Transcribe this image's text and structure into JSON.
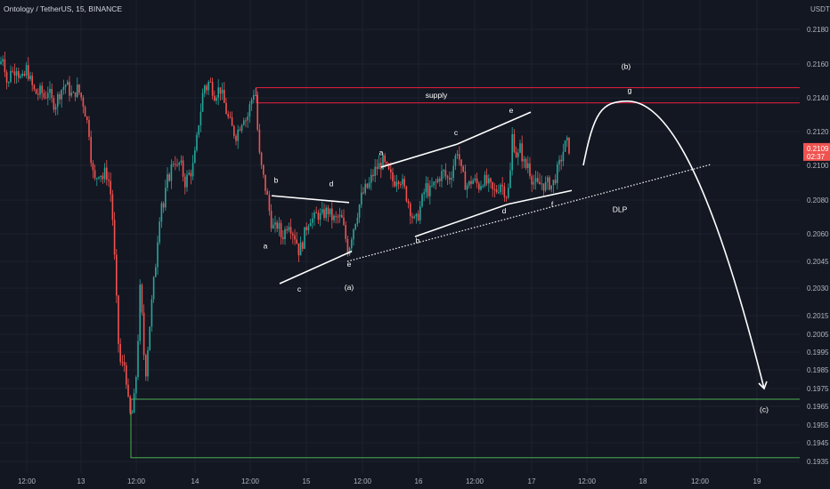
{
  "header": {
    "title": "Ontology / TetherUS, 15, BINANCE",
    "currency": "USDT"
  },
  "chart_data": {
    "type": "candlestick",
    "ylim": [
      0.193,
      0.219
    ],
    "price_ticks": [
      "0.2180",
      "0.2160",
      "0.2140",
      "0.2120",
      "0.2100",
      "0.2080",
      "0.2060",
      "0.2045",
      "0.2030",
      "0.2015",
      "0.2005",
      "0.1995",
      "0.1985",
      "0.1975",
      "0.1965",
      "0.1955",
      "0.1945",
      "0.1935"
    ],
    "time_ticks": [
      "12:00",
      "13",
      "12:00",
      "14",
      "12:00",
      "15",
      "12:00",
      "16",
      "12:00",
      "17",
      "12:00",
      "18",
      "12:00",
      "19"
    ],
    "last_price": "0.2109",
    "countdown": "02:37",
    "close_path": [
      [
        0,
        0.216
      ],
      [
        4,
        0.2166
      ],
      [
        7,
        0.215
      ],
      [
        10,
        0.2148
      ],
      [
        12,
        0.2158
      ],
      [
        15,
        0.2154
      ],
      [
        18,
        0.216
      ],
      [
        22,
        0.2152
      ],
      [
        26,
        0.215
      ],
      [
        30,
        0.2158
      ],
      [
        34,
        0.215
      ],
      [
        38,
        0.2144
      ],
      [
        42,
        0.2142
      ],
      [
        46,
        0.2144
      ],
      [
        50,
        0.214
      ],
      [
        54,
        0.2145
      ],
      [
        58,
        0.2138
      ],
      [
        62,
        0.2136
      ],
      [
        66,
        0.2142
      ],
      [
        70,
        0.2146
      ],
      [
        74,
        0.2148
      ],
      [
        78,
        0.2144
      ],
      [
        82,
        0.214
      ],
      [
        86,
        0.2146
      ],
      [
        90,
        0.2142
      ],
      [
        94,
        0.2136
      ],
      [
        97,
        0.2128
      ],
      [
        100,
        0.212
      ],
      [
        103,
        0.21
      ],
      [
        106,
        0.209
      ],
      [
        109,
        0.2094
      ],
      [
        112,
        0.2098
      ],
      [
        115,
        0.2092
      ],
      [
        118,
        0.2096
      ],
      [
        121,
        0.2094
      ],
      [
        124,
        0.2085
      ],
      [
        127,
        0.2065
      ],
      [
        130,
        0.203
      ],
      [
        133,
        0.2
      ],
      [
        136,
        0.1985
      ],
      [
        139,
        0.199
      ],
      [
        142,
        0.198
      ],
      [
        145,
        0.196
      ],
      [
        148,
        0.196
      ],
      [
        151,
        0.197
      ],
      [
        154,
        0.199
      ],
      [
        157,
        0.203
      ],
      [
        160,
        0.201
      ],
      [
        163,
        0.198
      ],
      [
        166,
        0.1998
      ],
      [
        169,
        0.2015
      ],
      [
        172,
        0.203
      ],
      [
        175,
        0.2045
      ],
      [
        178,
        0.2065
      ],
      [
        181,
        0.208
      ],
      [
        184,
        0.2075
      ],
      [
        187,
        0.209
      ],
      [
        190,
        0.2094
      ],
      [
        193,
        0.21
      ],
      [
        196,
        0.2105
      ],
      [
        199,
        0.2098
      ],
      [
        202,
        0.2102
      ],
      [
        205,
        0.2096
      ],
      [
        208,
        0.209
      ],
      [
        211,
        0.2094
      ],
      [
        214,
        0.2096
      ],
      [
        217,
        0.21
      ],
      [
        220,
        0.211
      ],
      [
        223,
        0.2125
      ],
      [
        226,
        0.2135
      ],
      [
        229,
        0.2148
      ],
      [
        232,
        0.2146
      ],
      [
        235,
        0.215
      ],
      [
        238,
        0.2146
      ],
      [
        241,
        0.2142
      ],
      [
        244,
        0.2144
      ],
      [
        247,
        0.2146
      ],
      [
        250,
        0.214
      ],
      [
        253,
        0.2134
      ],
      [
        256,
        0.2128
      ],
      [
        259,
        0.2124
      ],
      [
        262,
        0.212
      ],
      [
        265,
        0.2118
      ],
      [
        268,
        0.2122
      ],
      [
        271,
        0.2126
      ],
      [
        274,
        0.213
      ],
      [
        277,
        0.2126
      ],
      [
        280,
        0.2134
      ],
      [
        283,
        0.214
      ],
      [
        286,
        0.2146
      ],
      [
        288,
        0.2138
      ],
      [
        290,
        0.211
      ],
      [
        293,
        0.21
      ],
      [
        296,
        0.2092
      ],
      [
        300,
        0.2082
      ],
      [
        304,
        0.2068
      ],
      [
        308,
        0.2062
      ],
      [
        312,
        0.2066
      ],
      [
        316,
        0.2058
      ],
      [
        320,
        0.2062
      ],
      [
        324,
        0.2068
      ],
      [
        328,
        0.2062
      ],
      [
        332,
        0.2058
      ],
      [
        336,
        0.205
      ],
      [
        340,
        0.2056
      ],
      [
        344,
        0.2064
      ],
      [
        348,
        0.207
      ],
      [
        352,
        0.2068
      ],
      [
        356,
        0.2072
      ],
      [
        360,
        0.207
      ],
      [
        364,
        0.2072
      ],
      [
        368,
        0.2074
      ],
      [
        372,
        0.207
      ],
      [
        376,
        0.2068
      ],
      [
        380,
        0.207
      ],
      [
        384,
        0.2068
      ],
      [
        388,
        0.2058
      ],
      [
        391,
        0.205
      ],
      [
        394,
        0.2058
      ],
      [
        398,
        0.2066
      ],
      [
        402,
        0.2074
      ],
      [
        406,
        0.2082
      ],
      [
        410,
        0.2086
      ],
      [
        414,
        0.2088
      ],
      [
        418,
        0.2094
      ],
      [
        422,
        0.2098
      ],
      [
        426,
        0.21
      ],
      [
        430,
        0.2102
      ],
      [
        434,
        0.2098
      ],
      [
        438,
        0.2094
      ],
      [
        442,
        0.209
      ],
      [
        446,
        0.2094
      ],
      [
        450,
        0.2092
      ],
      [
        454,
        0.2086
      ],
      [
        458,
        0.208
      ],
      [
        462,
        0.2072
      ],
      [
        466,
        0.2066
      ],
      [
        470,
        0.2072
      ],
      [
        474,
        0.208
      ],
      [
        478,
        0.2088
      ],
      [
        482,
        0.2084
      ],
      [
        486,
        0.2088
      ],
      [
        490,
        0.209
      ],
      [
        494,
        0.2094
      ],
      [
        498,
        0.2096
      ],
      [
        502,
        0.2092
      ],
      [
        506,
        0.2094
      ],
      [
        510,
        0.2102
      ],
      [
        514,
        0.211
      ],
      [
        518,
        0.2096
      ],
      [
        522,
        0.209
      ],
      [
        526,
        0.2088
      ],
      [
        530,
        0.2092
      ],
      [
        534,
        0.209
      ],
      [
        538,
        0.2088
      ],
      [
        542,
        0.2092
      ],
      [
        546,
        0.209
      ],
      [
        550,
        0.2088
      ],
      [
        554,
        0.2084
      ],
      [
        558,
        0.2086
      ],
      [
        562,
        0.209
      ],
      [
        566,
        0.2086
      ],
      [
        570,
        0.2082
      ],
      [
        573,
        0.2096
      ],
      [
        575,
        0.2118
      ],
      [
        578,
        0.211
      ],
      [
        581,
        0.2104
      ],
      [
        584,
        0.211
      ],
      [
        587,
        0.2104
      ],
      [
        590,
        0.2098
      ],
      [
        593,
        0.2102
      ],
      [
        596,
        0.2094
      ],
      [
        600,
        0.209
      ],
      [
        604,
        0.2088
      ],
      [
        608,
        0.209
      ],
      [
        612,
        0.2088
      ],
      [
        616,
        0.209
      ],
      [
        620,
        0.2088
      ],
      [
        624,
        0.2094
      ],
      [
        628,
        0.21
      ],
      [
        632,
        0.2108
      ],
      [
        636,
        0.2114
      ],
      [
        640,
        0.2109
      ]
    ],
    "zones": [
      {
        "name": "supply",
        "label": "supply",
        "y1": 0.2137,
        "y2": 0.2146,
        "x1": 288,
        "x2": 932,
        "color": "#e91e3f"
      },
      {
        "name": "demand",
        "label": "",
        "y1": 0.1937,
        "y2": 0.1969,
        "x1": 147,
        "x2": 932,
        "color": "#4caf50"
      }
    ],
    "trendlines": [
      {
        "name": "trend-bd-1",
        "from": [
          305,
          0.20825
        ],
        "to": [
          392,
          0.20785
        ],
        "style": "solid"
      },
      {
        "name": "trend-ce-1",
        "from": [
          314,
          0.20325
        ],
        "to": [
          395,
          0.20505
        ],
        "style": "solid"
      },
      {
        "name": "trend-ac-2",
        "from": [
          428,
          0.2099
        ],
        "to": [
          513,
          0.21125
        ],
        "style": "solid"
      },
      {
        "name": "trend-ce-2",
        "from": [
          513,
          0.21125
        ],
        "to": [
          596,
          0.21315
        ],
        "style": "solid"
      },
      {
        "name": "trend-bd-2",
        "from": [
          466,
          0.20585
        ],
        "to": [
          570,
          0.20775
        ],
        "style": "solid"
      },
      {
        "name": "trend-df-2",
        "from": [
          570,
          0.20775
        ],
        "to": [
          642,
          0.20855
        ],
        "style": "solid"
      },
      {
        "name": "dlp-line",
        "from": [
          390,
          0.2045
        ],
        "to": [
          798,
          0.21005
        ],
        "style": "dotted"
      }
    ],
    "wave_labels": [
      {
        "text": "a",
        "x": 298,
        "y": 0.2052
      },
      {
        "text": "b",
        "x": 310,
        "y": 0.209
      },
      {
        "text": "c",
        "x": 336,
        "y": 0.2028
      },
      {
        "text": "d",
        "x": 372,
        "y": 0.2088
      },
      {
        "text": "e",
        "x": 392,
        "y": 0.2042
      },
      {
        "text": "(a)",
        "x": 392,
        "y": 0.2029
      },
      {
        "text": "a",
        "x": 428,
        "y": 0.2106
      },
      {
        "text": "b",
        "x": 469,
        "y": 0.2055
      },
      {
        "text": "c",
        "x": 512,
        "y": 0.2118
      },
      {
        "text": "d",
        "x": 566,
        "y": 0.2072
      },
      {
        "text": "e",
        "x": 574,
        "y": 0.2131
      },
      {
        "text": "f",
        "x": 620,
        "y": 0.2076
      },
      {
        "text": "DLP",
        "x": 696,
        "y": 0.2073
      },
      {
        "text": "(b)",
        "x": 703,
        "y": 0.2157
      },
      {
        "text": "g",
        "x": 707,
        "y": 0.2143
      },
      {
        "text": "(c)",
        "x": 858,
        "y": 0.1962
      }
    ],
    "projection": {
      "path": [
        [
          655,
          0.21
        ],
        [
          705,
          0.2138
        ],
        [
          858,
          0.1975
        ]
      ],
      "color": "#ffffff"
    }
  },
  "colors": {
    "background": "#131722",
    "up": "#26a69a",
    "down": "#ef5350",
    "grid": "#1e222d",
    "price_badge": "#ef5350"
  }
}
